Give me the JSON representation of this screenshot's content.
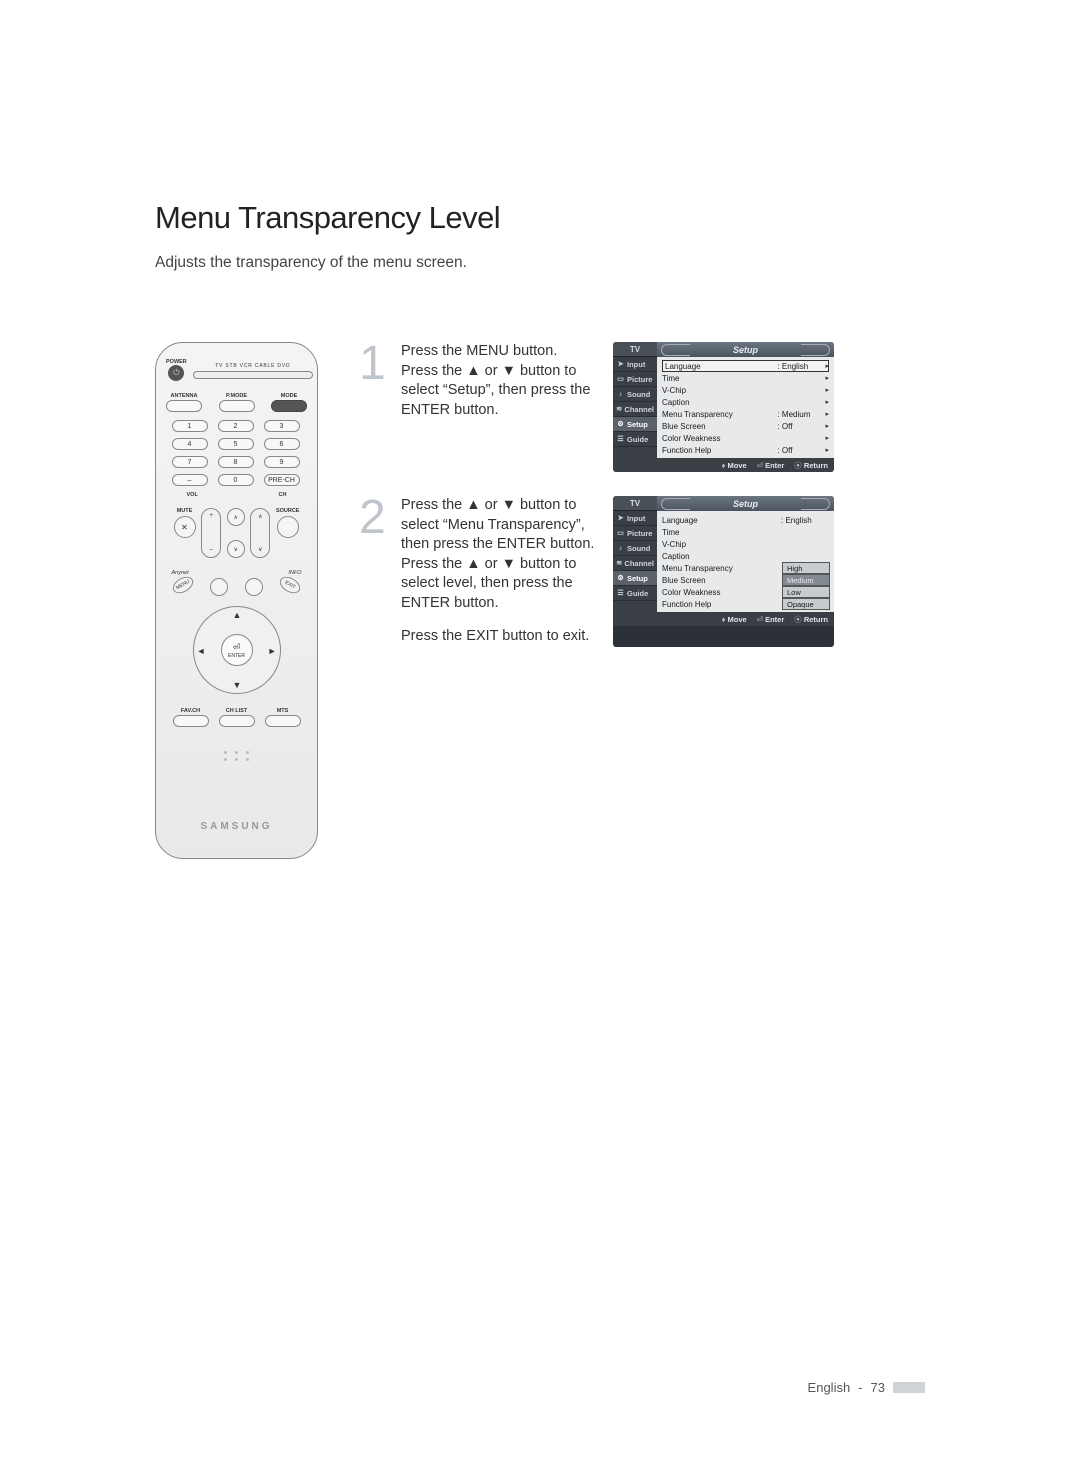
{
  "title": "Menu Transparency Level",
  "subtitle": "Adjusts the transparency of the menu screen.",
  "footer": {
    "lang": "English",
    "page": "73"
  },
  "remote": {
    "power_label": "POWER",
    "device_row": "TV  STB  VCR  CABLE  DVD",
    "antenna": "ANTENNA",
    "pmode": "P.MODE",
    "mode": "MODE",
    "nums": [
      "1",
      "2",
      "3",
      "4",
      "5",
      "6",
      "7",
      "8",
      "9",
      "–",
      "0",
      "PRE-CH"
    ],
    "vol": "VOL",
    "ch": "CH",
    "mute": "MUTE",
    "source": "SOURCE",
    "anynet": "Anynet",
    "info": "INFO",
    "menu": "MENU",
    "exit": "EXIT",
    "enter": "ENTER",
    "favch": "FAV.CH",
    "chlist": "CH LIST",
    "mts": "MTS",
    "brand": "SAMSUNG"
  },
  "steps": {
    "s1": {
      "num": "1",
      "text": "Press the MENU button.\nPress the ▲ or ▼ button to select “Setup”, then press the ENTER button."
    },
    "s2": {
      "num": "2",
      "text": "Press the ▲ or ▼ button to select “Menu Transparency”, then press the ENTER button. Press the ▲ or ▼ button to select level, then press the ENTER button.",
      "text2": "Press the EXIT button to exit."
    }
  },
  "osd_common": {
    "tv": "TV",
    "title": "Setup",
    "tabs": [
      "Input",
      "Picture",
      "Sound",
      "Channel",
      "Setup",
      "Guide"
    ],
    "foot_move": "Move",
    "foot_enter": "Enter",
    "foot_return": "Return"
  },
  "osd1": {
    "rows": [
      {
        "k": "Language",
        "v": ": English",
        "sel": true
      },
      {
        "k": "Time",
        "v": ""
      },
      {
        "k": "V-Chip",
        "v": ""
      },
      {
        "k": "Caption",
        "v": ""
      },
      {
        "k": "Menu Transparency",
        "v": ": Medium"
      },
      {
        "k": "Blue Screen",
        "v": ": Off"
      },
      {
        "k": "Color Weakness",
        "v": ""
      },
      {
        "k": "Function Help",
        "v": ": Off"
      }
    ]
  },
  "osd2": {
    "rows": [
      {
        "k": "Language",
        "v": ": English"
      },
      {
        "k": "Time",
        "v": ""
      },
      {
        "k": "V-Chip",
        "v": ""
      },
      {
        "k": "Caption",
        "v": ""
      }
    ],
    "mt_label": "Menu Transparency",
    "bs_label": "Blue Screen",
    "cw_label": "Color Weakness",
    "fh_label": "Function Help",
    "options": [
      "High",
      "Medium",
      "Low",
      "Opaque"
    ],
    "selected_option": "Medium"
  },
  "colors": {
    "osd_bg": "#2c3138",
    "osd_side": "#3a3f46",
    "osd_main": "#e8e9ea",
    "stepnum": "#bfc5cb"
  }
}
